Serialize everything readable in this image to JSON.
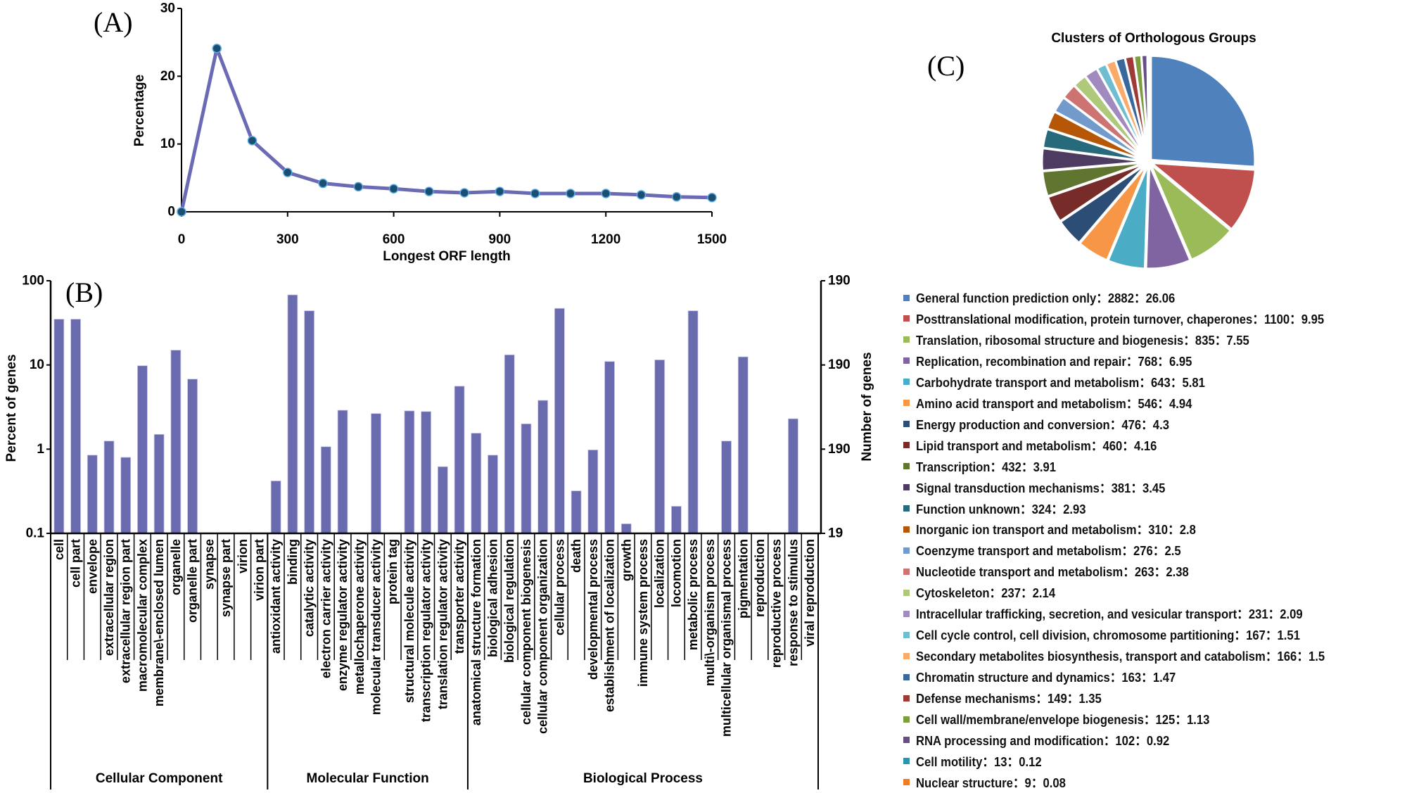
{
  "panels": {
    "a": "(A)",
    "b": "(B)",
    "c": "(C)"
  },
  "chart_data": [
    {
      "type": "line",
      "xlabel": "Longest ORF length",
      "ylabel": "Percentage",
      "xlim": [
        0,
        1500
      ],
      "ylim": [
        0,
        30
      ],
      "xticks": [
        "0",
        "300",
        "600",
        "900",
        "1200",
        "1500"
      ],
      "yticks": [
        "0",
        "10",
        "20",
        "30"
      ],
      "grid": false,
      "line_color": "#6B6BB5",
      "marker_color": "#1B4F72",
      "x": [
        0,
        100,
        200,
        300,
        400,
        500,
        600,
        700,
        800,
        900,
        1000,
        1100,
        1200,
        1300,
        1400,
        1500
      ],
      "y": [
        0,
        24.1,
        10.5,
        5.8,
        4.2,
        3.7,
        3.4,
        3.0,
        2.8,
        3.0,
        2.7,
        2.7,
        2.7,
        2.5,
        2.2,
        2.1
      ]
    },
    {
      "type": "bar",
      "ylabel": "Percent of genes",
      "y2label": "Number of genes",
      "yscale": "log",
      "ylim": [
        0.1,
        100
      ],
      "yticks": [
        "0.1",
        "1",
        "10",
        "100"
      ],
      "y2ticks": [
        "19",
        "190",
        "190",
        "190"
      ],
      "bar_color": "#6A6BAF",
      "groups": [
        {
          "name": "Cellular Component",
          "count": 13
        },
        {
          "name": "Molecular Function",
          "count": 12
        },
        {
          "name": "Biological Process",
          "count": 21
        }
      ],
      "categories": [
        "cell",
        "cell part",
        "envelope",
        "extracellular region",
        "extracellular region part",
        "macromolecular complex",
        "membrane\\-enclosed lumen",
        "organelle",
        "organelle part",
        "synapse",
        "synapse part",
        "virion",
        "virion part",
        "antioxidant activity",
        "binding",
        "catalytic activity",
        "electron carrier activity",
        "enzyme regulator activity",
        "metallochaperone activity",
        "molecular transducer activity",
        "protein tag",
        "structural molecule activity",
        "transcription regulator activity",
        "translation regulator activity",
        "transporter activity",
        "anatomical structure formation",
        "biological adhesion",
        "biological regulation",
        "cellular component biogenesis",
        "cellular component organization",
        "cellular process",
        "death",
        "developmental process",
        "establishment of localization",
        "growth",
        "immune system process",
        "localization",
        "locomotion",
        "metabolic process",
        "multi\\-organism process",
        "multicellular organismal process",
        "pigmentation",
        "reproduction",
        "reproductive process",
        "response to stimulus",
        "viral reproduction"
      ],
      "values": [
        35,
        35,
        0.85,
        1.25,
        0.8,
        9.8,
        1.5,
        15,
        6.8,
        null,
        null,
        null,
        null,
        0.42,
        68,
        44,
        1.07,
        2.9,
        null,
        2.65,
        null,
        2.85,
        2.8,
        0.62,
        5.6,
        1.55,
        0.85,
        13.2,
        2.0,
        3.8,
        47,
        0.32,
        0.98,
        11,
        0.13,
        null,
        11.5,
        0.21,
        44,
        null,
        1.25,
        12.5,
        null,
        null,
        2.3,
        null
      ]
    },
    {
      "type": "pie",
      "title": "Clusters of Orthologous Groups",
      "legend": "right-below",
      "slices": [
        {
          "label": "General function prediction only",
          "count": "2882",
          "percent": "26.06",
          "color": "#4F81BD"
        },
        {
          "label": "Posttranslational modification, protein turnover, chaperones",
          "count": "1100",
          "percent": "9.95",
          "color": "#C0504D"
        },
        {
          "label": "Translation, ribosomal structure and biogenesis",
          "count": "835",
          "percent": "7.55",
          "color": "#9BBB59"
        },
        {
          "label": "Replication, recombination and repair",
          "count": "768",
          "percent": "6.95",
          "color": "#8064A2"
        },
        {
          "label": "Carbohydrate transport and metabolism",
          "count": "643",
          "percent": "5.81",
          "color": "#4BACC6"
        },
        {
          "label": "Amino acid transport and metabolism",
          "count": "546",
          "percent": "4.94",
          "color": "#F79646"
        },
        {
          "label": "Energy production and conversion",
          "count": "476",
          "percent": "4.3",
          "color": "#2C4D75"
        },
        {
          "label": "Lipid transport and metabolism",
          "count": "460",
          "percent": "4.16",
          "color": "#772C2A"
        },
        {
          "label": "Transcription",
          "count": "432",
          "percent": "3.91",
          "color": "#5F7530"
        },
        {
          "label": "Signal transduction mechanisms",
          "count": "381",
          "percent": "3.45",
          "color": "#4D3B62"
        },
        {
          "label": "Function unknown",
          "count": "324",
          "percent": "2.93",
          "color": "#276A7C"
        },
        {
          "label": "Inorganic ion transport and metabolism",
          "count": "310",
          "percent": "2.8",
          "color": "#B65708"
        },
        {
          "label": "Coenzyme transport and metabolism",
          "count": "276",
          "percent": "2.5",
          "color": "#729ACA"
        },
        {
          "label": "Nucleotide transport and metabolism",
          "count": "263",
          "percent": "2.38",
          "color": "#CD7371"
        },
        {
          "label": "Cytoskeleton",
          "count": "237",
          "percent": "2.14",
          "color": "#AFC97A"
        },
        {
          "label": "Intracellular trafficking, secretion, and vesicular transport",
          "count": "231",
          "percent": "2.09",
          "color": "#A18BBE"
        },
        {
          "label": "Cell cycle control, cell division, chromosome partitioning",
          "count": "167",
          "percent": "1.51",
          "color": "#6FBDD1"
        },
        {
          "label": "Secondary metabolites biosynthesis, transport and catabolism",
          "count": "166",
          "percent": "1.5",
          "color": "#F9AB6B"
        },
        {
          "label": "Chromatin structure and dynamics",
          "count": "163",
          "percent": "1.47",
          "color": "#3A679C"
        },
        {
          "label": "Defense mechanisms",
          "count": "149",
          "percent": "1.35",
          "color": "#9E3B38"
        },
        {
          "label": "Cell wall/membrane/envelope biogenesis",
          "count": "125",
          "percent": "1.13",
          "color": "#7E9C40"
        },
        {
          "label": "RNA processing and modification",
          "count": "102",
          "percent": "0.92",
          "color": "#664F83"
        },
        {
          "label": "Cell motility",
          "count": "13",
          "percent": "0.12",
          "color": "#2796AE"
        },
        {
          "label": "Nuclear structure",
          "count": "9",
          "percent": "0.08",
          "color": "#F47A20"
        }
      ],
      "separator": "："
    }
  ]
}
